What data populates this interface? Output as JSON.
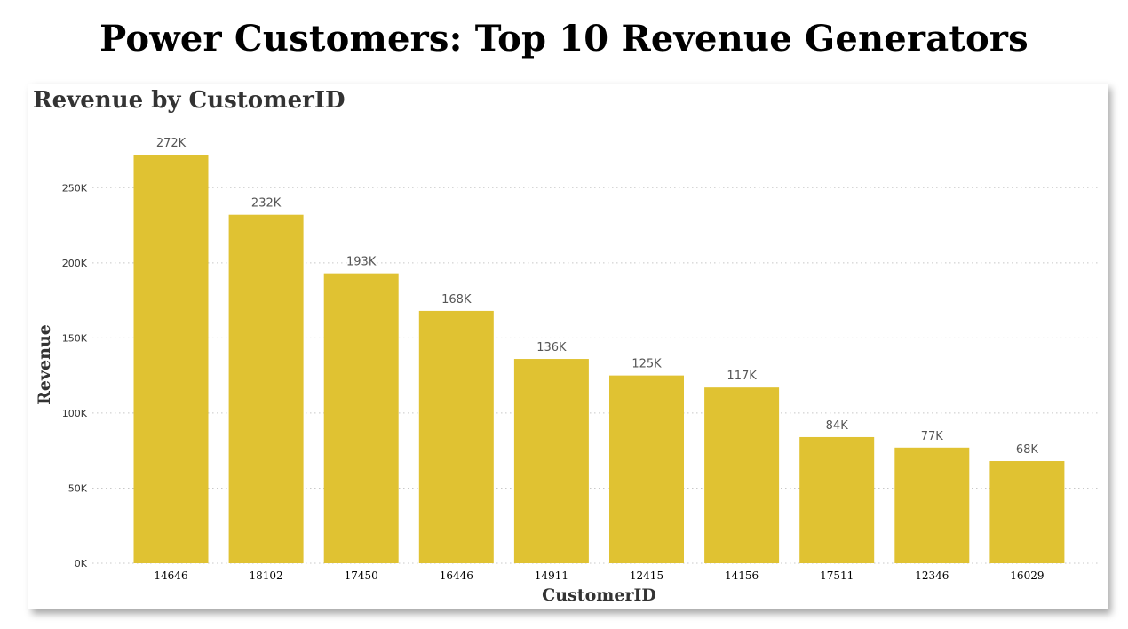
{
  "page_title": "Power Customers: Top 10 Revenue Generators",
  "chart_data": {
    "type": "bar",
    "title": "Revenue by CustomerID",
    "xlabel": "CustomerID",
    "ylabel": "Revenue",
    "categories": [
      "14646",
      "18102",
      "17450",
      "16446",
      "14911",
      "12415",
      "14156",
      "17511",
      "12346",
      "16029"
    ],
    "values": [
      272000,
      232000,
      193000,
      168000,
      136000,
      125000,
      117000,
      84000,
      77000,
      68000
    ],
    "data_labels": [
      "272K",
      "232K",
      "193K",
      "168K",
      "136K",
      "125K",
      "117K",
      "84K",
      "77K",
      "68K"
    ],
    "ylim": [
      0,
      275000
    ],
    "yticks": [
      0,
      50000,
      100000,
      150000,
      200000,
      250000
    ],
    "ytick_labels": [
      "0K",
      "50K",
      "100K",
      "150K",
      "200K",
      "250K"
    ],
    "grid": true,
    "bar_color": "#E0C232",
    "grid_color": "#C8C8C8"
  }
}
